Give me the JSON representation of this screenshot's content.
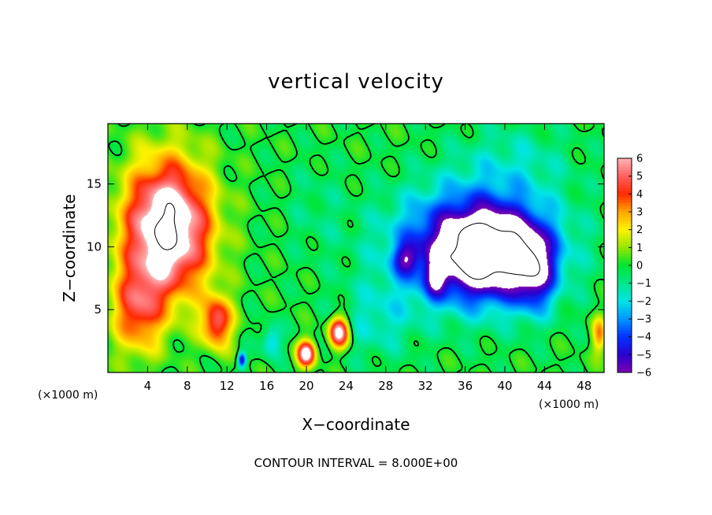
{
  "chart_data": {
    "type": "heatmap",
    "title": "vertical velocity",
    "xlabel": "X−coordinate",
    "ylabel": "Z−coordinate",
    "x_unit": "(×1000 m)",
    "y_unit": "(×1000 m)",
    "footer": "CONTOUR INTERVAL = 8.000E+00",
    "xlim": [
      0,
      50
    ],
    "ylim": [
      0,
      19.8
    ],
    "x_ticks": [
      4,
      8,
      12,
      16,
      20,
      24,
      28,
      32,
      36,
      40,
      44,
      48
    ],
    "y_ticks": [
      5,
      10,
      15
    ],
    "colorbar": {
      "ticks": [
        6,
        5,
        4,
        3,
        2,
        1,
        0,
        -1,
        -2,
        -3,
        -4,
        -5,
        -6
      ],
      "tick_labels": [
        "6",
        "5",
        "4",
        "3",
        "2",
        "1",
        "0",
        "−1",
        "−2",
        "−3",
        "−4",
        "−5",
        "−6"
      ],
      "range": [
        -6,
        6
      ],
      "colors": [
        "#7a00b0",
        "#2a00d0",
        "#0034ff",
        "#0096ff",
        "#00e6e6",
        "#00e68c",
        "#00e632",
        "#96e600",
        "#fff200",
        "#ffa500",
        "#ff2a00",
        "#ff6060",
        "#ffb4b4"
      ]
    },
    "features": [
      {
        "kind": "updraft",
        "x": 6,
        "z": 11.5,
        "sx": 4.2,
        "sz": 5.2,
        "w": 8.5
      },
      {
        "kind": "updraft",
        "x": 3,
        "z": 5,
        "sx": 2.5,
        "sz": 3.5,
        "w": 4
      },
      {
        "kind": "updraft",
        "x": 11,
        "z": 4,
        "sx": 1.5,
        "sz": 2,
        "w": 5
      },
      {
        "kind": "updraft",
        "x": 20,
        "z": 1.5,
        "sx": 0.9,
        "sz": 1.0,
        "w": 7
      },
      {
        "kind": "updraft",
        "x": 23.3,
        "z": 3.2,
        "sx": 1.0,
        "sz": 1.2,
        "w": 7
      },
      {
        "kind": "updraft",
        "x": 49.5,
        "z": 3,
        "sx": 0.7,
        "sz": 1.5,
        "w": 3
      },
      {
        "kind": "downdraft",
        "x": 37,
        "z": 10,
        "sx": 8,
        "sz": 4.5,
        "w": -6.5
      },
      {
        "kind": "downdraft",
        "x": 38.5,
        "z": 9.5,
        "sx": 4.5,
        "sz": 3.2,
        "w": -4.5
      },
      {
        "kind": "downdraft",
        "x": 43,
        "z": 8,
        "sx": 2,
        "sz": 3,
        "w": -4
      },
      {
        "kind": "downdraft",
        "x": 30,
        "z": 9,
        "sx": 1.2,
        "sz": 1.2,
        "w": -3
      },
      {
        "kind": "downdraft",
        "x": 33,
        "z": 7.5,
        "sx": 1.0,
        "sz": 1.5,
        "w": -3
      },
      {
        "kind": "downdraft",
        "x": 13.5,
        "z": 1,
        "sx": 0.4,
        "sz": 0.6,
        "w": -5
      },
      {
        "kind": "downdraft",
        "x": 16.5,
        "z": 2.5,
        "sx": 1.0,
        "sz": 1.3,
        "w": -2.5
      },
      {
        "kind": "downdraft",
        "x": 27,
        "z": 4,
        "sx": 4,
        "sz": 3,
        "w": -1.5
      },
      {
        "kind": "downdraft",
        "x": 21,
        "z": 13,
        "sx": 3,
        "sz": 4,
        "w": -0.7
      },
      {
        "kind": "downdraft",
        "x": 41,
        "z": 17,
        "sx": 6,
        "sz": 3,
        "w": -1.2
      }
    ]
  }
}
